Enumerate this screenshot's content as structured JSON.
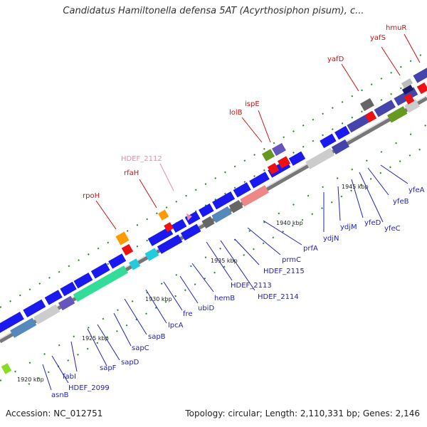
{
  "title": "Candidatus Hamiltonella defensa 5AT (Acyrthosiphon pisum), c...",
  "footer": {
    "accession": "Accession: NC_012751",
    "topology": "Topology: circular; Length: 2,110,331 bp; Genes: 2,146"
  },
  "colors": {
    "cds": "#1a1aee",
    "trna": "#ee1111",
    "rrna": "#ff9900",
    "pseudo": "#666666",
    "blue_label": "#2222bb",
    "red_label": "#cc1111",
    "pink_label": "#ee88aa",
    "backbone": "#888888",
    "ticks": "#228822"
  },
  "kbp_labels": [
    {
      "text": "1920 kbp"
    },
    {
      "text": "1925 kbp"
    },
    {
      "text": "1930 kbp"
    },
    {
      "text": "1935 kbp"
    },
    {
      "text": "1940 kbp"
    },
    {
      "text": "1945 kbp"
    }
  ],
  "gene_labels_lower": [
    {
      "text": "asnB"
    },
    {
      "text": "HDEF_2099"
    },
    {
      "text": "fabI"
    },
    {
      "text": "sapF"
    },
    {
      "text": "sapD"
    },
    {
      "text": "sapC"
    },
    {
      "text": "sapB"
    },
    {
      "text": "lpcA"
    },
    {
      "text": "fre"
    },
    {
      "text": "ubiD"
    },
    {
      "text": "hemB"
    },
    {
      "text": "HDEF_2113"
    },
    {
      "text": "HDEF_2114"
    },
    {
      "text": "HDEF_2115"
    },
    {
      "text": "prmC"
    },
    {
      "text": "prfA"
    },
    {
      "text": "ydjN"
    },
    {
      "text": "ydjM"
    },
    {
      "text": "yfeD"
    },
    {
      "text": "yfeC"
    },
    {
      "text": "yfeB"
    },
    {
      "text": "yfeA"
    }
  ],
  "gene_labels_upper": [
    {
      "text": "rpoH"
    },
    {
      "text": "rfaH"
    },
    {
      "text": "HDEF_2112"
    },
    {
      "text": "lolB"
    },
    {
      "text": "ispE"
    },
    {
      "text": "yafD"
    },
    {
      "text": "yafS"
    },
    {
      "text": "hmuR"
    }
  ]
}
